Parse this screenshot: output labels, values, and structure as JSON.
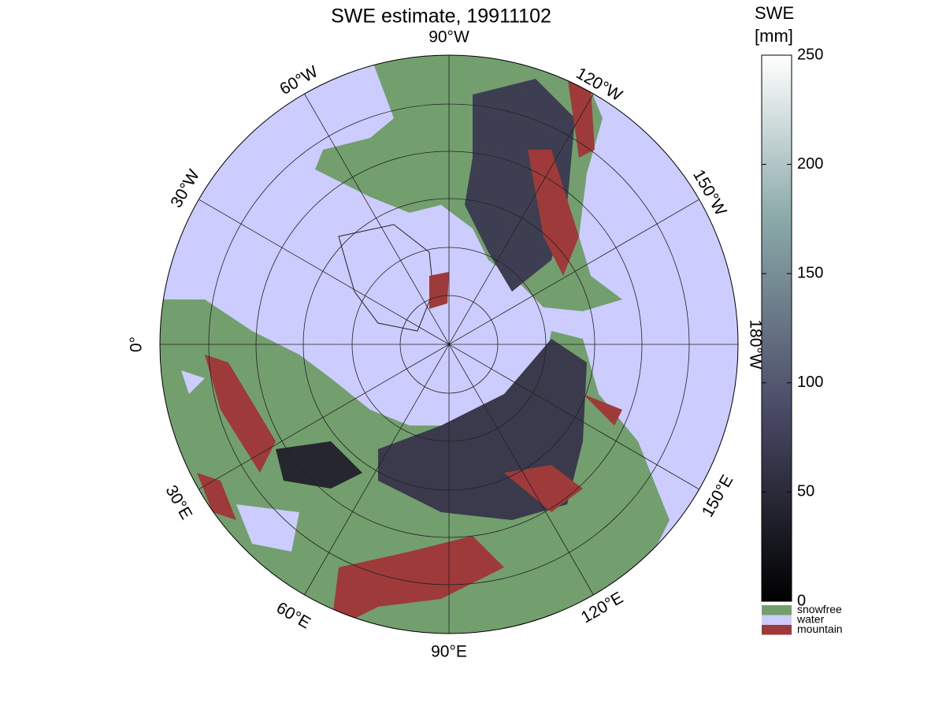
{
  "title": "SWE estimate, 19911102",
  "colorbar": {
    "label": [
      "SWE",
      "[mm]"
    ],
    "lim": [
      0,
      250
    ],
    "ticks": [
      0,
      50,
      100,
      150,
      200,
      250
    ]
  },
  "legend": [
    {
      "name": "snowfree",
      "color": "#739e6e"
    },
    {
      "name": "water",
      "color": "#ccccff"
    },
    {
      "name": "mountain",
      "color": "#9e3a3a"
    }
  ],
  "longitude_labels": [
    "90°W",
    "120°W",
    "150°W",
    "180°W",
    "150°E",
    "120°E",
    "90°E",
    "60°E",
    "30°E",
    "0°",
    "30°W",
    "60°W"
  ]
}
